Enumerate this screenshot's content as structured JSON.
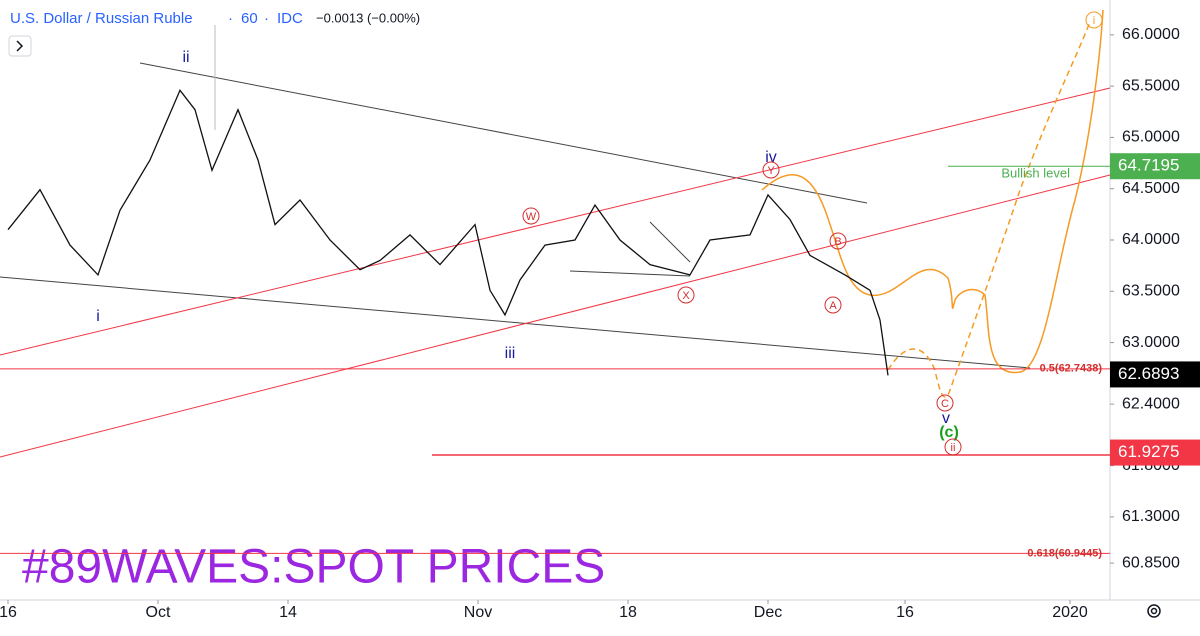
{
  "header": {
    "symbol": "U.S. Dollar / Russian Ruble",
    "interval": "60",
    "source": "IDC",
    "change": "−0.0013 (−0.00%)"
  },
  "chart_data": {
    "type": "line",
    "watermark": "#89WAVES:SPOT PRICES",
    "x": [
      0,
      3.2,
      6.2,
      9,
      11.2,
      14.2,
      17.2,
      18.7,
      20.4,
      23,
      25,
      26.7,
      29.2,
      32.2,
      35.2,
      37.2,
      40.2,
      43.2,
      46.7,
      48.2,
      49.7,
      51.2,
      53.7,
      56.7,
      58.7,
      61.2,
      64.2,
      68.2,
      70.2,
      74.2,
      76,
      78.2,
      80.2,
      83.7,
      86.2,
      87.2,
      88
    ],
    "series": [
      {
        "color": "#111111",
        "values": [
          64.1,
          64.49,
          63.95,
          63.66,
          64.29,
          64.78,
          65.46,
          65.27,
          64.68,
          65.27,
          64.78,
          64.15,
          64.39,
          64.0,
          63.71,
          63.8,
          64.05,
          63.76,
          64.15,
          63.51,
          63.27,
          63.61,
          63.95,
          64.0,
          64.34,
          64.0,
          63.76,
          63.66,
          64.0,
          64.05,
          64.44,
          64.2,
          63.85,
          63.66,
          63.51,
          63.22,
          62.68
        ]
      }
    ],
    "xlim": [
      -0.8,
      110.2
    ],
    "xticks": [
      {
        "value": 0,
        "label": "16"
      },
      {
        "value": 15,
        "label": "Oct"
      },
      {
        "value": 28,
        "label": "14"
      },
      {
        "value": 47,
        "label": "Nov"
      },
      {
        "value": 62,
        "label": "18"
      },
      {
        "value": 76,
        "label": "Dec"
      },
      {
        "value": 89.7,
        "label": "16"
      },
      {
        "value": 106.2,
        "label": "2020"
      }
    ],
    "ylim": [
      60.49,
      66.34
    ],
    "yticks": [
      {
        "value": 66,
        "label": "66.0000"
      },
      {
        "value": 65.5,
        "label": "65.5000"
      },
      {
        "value": 65,
        "label": "65.0000"
      },
      {
        "value": 64.5,
        "label": "64.5000"
      },
      {
        "value": 64,
        "label": "64.0000"
      },
      {
        "value": 63.5,
        "label": "63.5000"
      },
      {
        "value": 63,
        "label": "63.0000"
      },
      {
        "value": 62.4,
        "label": "62.4000"
      },
      {
        "value": 61.8,
        "label": "61.8000"
      },
      {
        "value": 61.3,
        "label": "61.3000"
      },
      {
        "value": 60.85,
        "label": "60.8500"
      }
    ],
    "levels": [
      {
        "value": 62.7438,
        "label": "0.5(62.7438)",
        "color": "#f23645"
      },
      {
        "value": 60.9445,
        "label": "0.618(60.9445)",
        "color": "#f23645"
      },
      {
        "value": 64.7195,
        "label": "Bullish level",
        "color": "#4caf50"
      }
    ],
    "price_badges": [
      {
        "value": 64.7195,
        "label": "64.7195",
        "color": "#4caf50"
      },
      {
        "value": 62.6893,
        "label": "62.6893",
        "color": "#000000"
      },
      {
        "value": 61.9275,
        "label": "61.9275",
        "color": "#f23645"
      }
    ],
    "annotations": [
      {
        "text": "ii",
        "color": "#1a1aa0"
      },
      {
        "text": "i",
        "color": "#1a1aa0"
      },
      {
        "text": "iii",
        "color": "#1a1aa0"
      },
      {
        "text": "iv",
        "color": "#1a1aa0"
      },
      {
        "text": "v",
        "color": "#1a1aa0"
      },
      {
        "text": "W",
        "color": "#d32f2f"
      },
      {
        "text": "X",
        "color": "#d32f2f"
      },
      {
        "text": "Y",
        "color": "#d32f2f"
      },
      {
        "text": "A",
        "color": "#d32f2f"
      },
      {
        "text": "B",
        "color": "#d32f2f"
      },
      {
        "text": "C",
        "color": "#d32f2f"
      },
      {
        "text": "(c)",
        "color": "#1b9e1b"
      },
      {
        "text": "ii",
        "color": "#d32f2f"
      },
      {
        "text": "i",
        "color": "#f59a23"
      }
    ]
  }
}
